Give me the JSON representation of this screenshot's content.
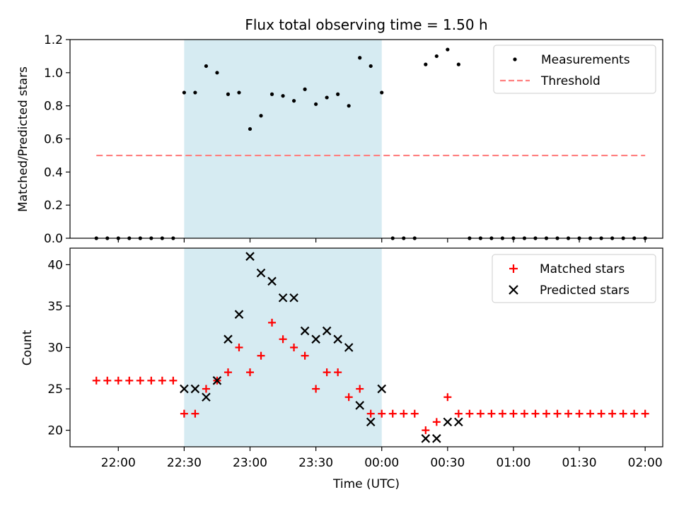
{
  "chart_data": [
    {
      "type": "scatter",
      "title": "Flux total observing time = 1.50 h",
      "xlabel": "",
      "ylabel": "Matched/Predicted stars",
      "ylim": [
        0,
        1.2
      ],
      "yticks": [
        0.0,
        0.2,
        0.4,
        0.6,
        0.8,
        1.0,
        1.2
      ],
      "ytick_labels": [
        "0.0",
        "0.2",
        "0.4",
        "0.6",
        "0.8",
        "1.0",
        "1.2"
      ],
      "shaded_interval": [
        "22:30",
        "00:00"
      ],
      "shade_color": "#add8e6",
      "legend_position": "top-right",
      "series": [
        {
          "name": "Measurements",
          "color": "#000000",
          "marker": "dot",
          "x": [
            "21:50",
            "21:55",
            "22:00",
            "22:05",
            "22:10",
            "22:15",
            "22:20",
            "22:25",
            "22:30",
            "22:35",
            "22:40",
            "22:45",
            "22:50",
            "22:55",
            "23:00",
            "23:05",
            "23:10",
            "23:15",
            "23:20",
            "23:25",
            "23:30",
            "23:35",
            "23:40",
            "23:45",
            "23:50",
            "23:55",
            "00:00",
            "00:05",
            "00:10",
            "00:15",
            "00:20",
            "00:25",
            "00:30",
            "00:35",
            "00:40",
            "00:45",
            "00:50",
            "00:55",
            "01:00",
            "01:05",
            "01:10",
            "01:15",
            "01:20",
            "01:25",
            "01:30",
            "01:35",
            "01:40",
            "01:45",
            "01:50",
            "01:55",
            "02:00"
          ],
          "y": [
            0,
            0,
            0,
            0,
            0,
            0,
            0,
            0,
            0.88,
            0.88,
            1.04,
            1.0,
            0.87,
            0.88,
            0.66,
            0.74,
            0.87,
            0.86,
            0.83,
            0.9,
            0.81,
            0.85,
            0.87,
            0.8,
            1.09,
            1.04,
            0.88,
            0,
            0,
            0,
            1.05,
            1.1,
            1.14,
            1.05,
            0,
            0,
            0,
            0,
            0,
            0,
            0,
            0,
            0,
            0,
            0,
            0,
            0,
            0,
            0,
            0,
            0
          ]
        },
        {
          "name": "Threshold",
          "color": "#ff7f7f",
          "style": "dashed",
          "x": [
            "21:50",
            "02:00"
          ],
          "y": [
            0.5,
            0.5
          ]
        }
      ]
    },
    {
      "type": "scatter",
      "title": "",
      "xlabel": "Time (UTC)",
      "ylabel": "Count",
      "ylim": [
        18,
        42
      ],
      "yticks": [
        20,
        25,
        30,
        35,
        40
      ],
      "ytick_labels": [
        "20",
        "25",
        "30",
        "35",
        "40"
      ],
      "xlim": [
        "21:38",
        "02:08"
      ],
      "xticks": [
        "22:00",
        "22:30",
        "23:00",
        "23:30",
        "00:00",
        "00:30",
        "01:00",
        "01:30",
        "02:00"
      ],
      "xtick_labels": [
        "22:00",
        "22:30",
        "23:00",
        "23:30",
        "00:00",
        "00:30",
        "01:00",
        "01:30",
        "02:00"
      ],
      "shaded_interval": [
        "22:30",
        "00:00"
      ],
      "shade_color": "#add8e6",
      "legend_position": "top-right",
      "series": [
        {
          "name": "Matched stars",
          "color": "#ff0000",
          "marker": "plus",
          "x": [
            "21:50",
            "21:55",
            "22:00",
            "22:05",
            "22:10",
            "22:15",
            "22:20",
            "22:25",
            "22:30",
            "22:35",
            "22:40",
            "22:45",
            "22:50",
            "22:55",
            "23:00",
            "23:05",
            "23:10",
            "23:15",
            "23:20",
            "23:25",
            "23:30",
            "23:35",
            "23:40",
            "23:45",
            "23:50",
            "23:55",
            "00:00",
            "00:05",
            "00:10",
            "00:15",
            "00:20",
            "00:25",
            "00:30",
            "00:35",
            "00:40",
            "00:45",
            "00:50",
            "00:55",
            "01:00",
            "01:05",
            "01:10",
            "01:15",
            "01:20",
            "01:25",
            "01:30",
            "01:35",
            "01:40",
            "01:45",
            "01:50",
            "01:55",
            "02:00"
          ],
          "y": [
            26,
            26,
            26,
            26,
            26,
            26,
            26,
            26,
            22,
            22,
            25,
            26,
            27,
            30,
            27,
            29,
            33,
            31,
            30,
            29,
            25,
            27,
            27,
            24,
            25,
            22,
            22,
            22,
            22,
            22,
            20,
            21,
            24,
            22,
            22,
            22,
            22,
            22,
            22,
            22,
            22,
            22,
            22,
            22,
            22,
            22,
            22,
            22,
            22,
            22,
            22
          ]
        },
        {
          "name": "Predicted stars",
          "color": "#000000",
          "marker": "x",
          "x": [
            "22:30",
            "22:35",
            "22:40",
            "22:45",
            "22:50",
            "22:55",
            "23:00",
            "23:05",
            "23:10",
            "23:15",
            "23:20",
            "23:25",
            "23:30",
            "23:35",
            "23:40",
            "23:45",
            "23:50",
            "23:55",
            "00:00",
            "00:20",
            "00:25",
            "00:30",
            "00:35"
          ],
          "y": [
            25,
            25,
            24,
            26,
            31,
            34,
            41,
            39,
            38,
            36,
            36,
            32,
            31,
            32,
            31,
            30,
            23,
            21,
            25,
            19,
            19,
            21,
            21
          ]
        }
      ]
    }
  ]
}
